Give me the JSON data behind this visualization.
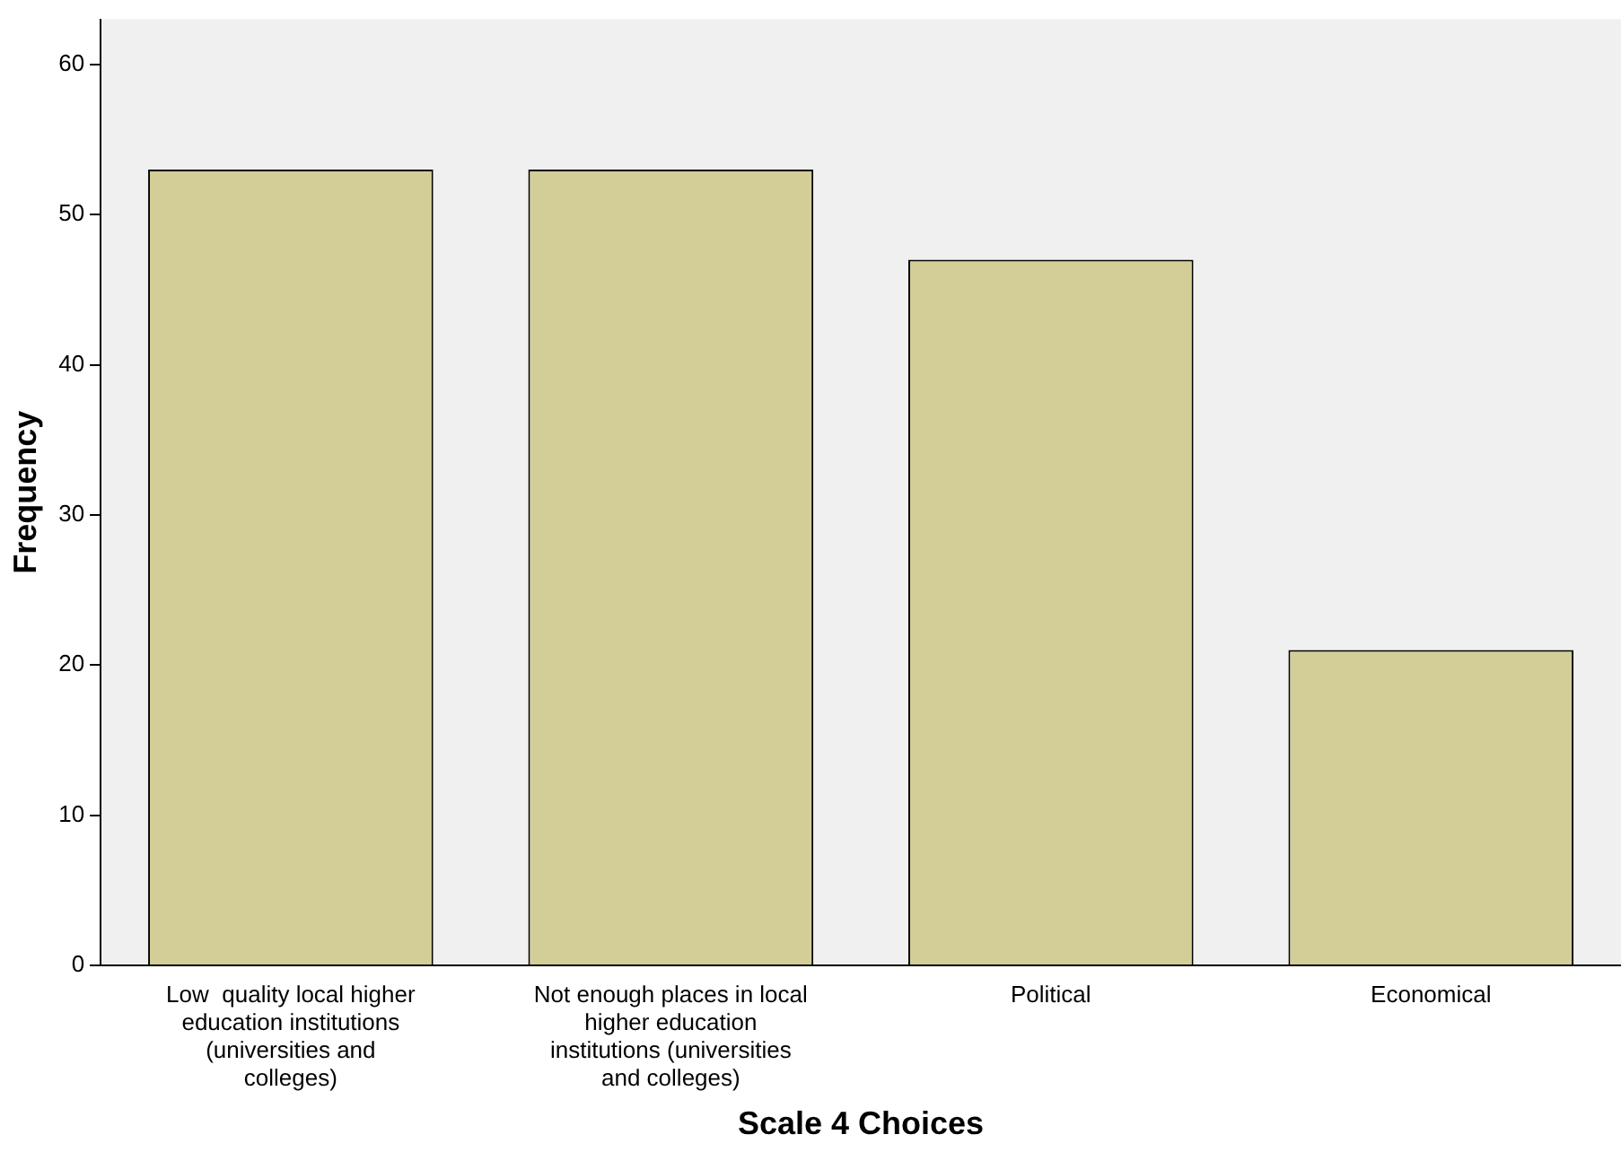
{
  "chart_data": {
    "type": "bar",
    "xlabel": "Scale 4 Choices",
    "ylabel": "Frequency",
    "categories": [
      "Low  quality local higher education institutions (universities and colleges)",
      "Not enough places in local higher education institutions (universities and colleges)",
      "Political",
      "Economical"
    ],
    "values": [
      53,
      53,
      47,
      21
    ],
    "color": "#d3ce97",
    "ylim": [
      0,
      63
    ],
    "yticks": [
      0,
      10,
      20,
      30,
      40,
      50,
      60
    ],
    "grid": false,
    "legend": false
  }
}
